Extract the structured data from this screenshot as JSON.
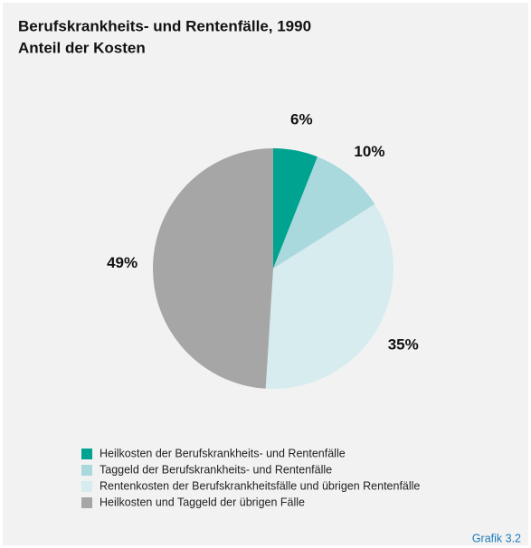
{
  "chart_data": {
    "type": "pie",
    "title": "Berufskrankheits- und Rentenfälle, 1990",
    "subtitle": "Anteil der Kosten",
    "categories": [
      "Heilkosten der Berufskrankheits- und Rentenfälle",
      "Taggeld der Berufskrankheits- und Rentenfälle",
      "Rentenkosten der Berufskrankheitsfälle und übrigen Rentenfälle",
      "Heilkosten und Taggeld der übrigen Fälle"
    ],
    "values": [
      6,
      10,
      35,
      49
    ],
    "value_labels": [
      "6%",
      "10%",
      "35%",
      "49%"
    ],
    "colors": [
      "#00a38f",
      "#a9d8dd",
      "#d6ecef",
      "#a6a6a6"
    ],
    "legend": "bottom",
    "figure_label": "Grafik 3.2"
  }
}
